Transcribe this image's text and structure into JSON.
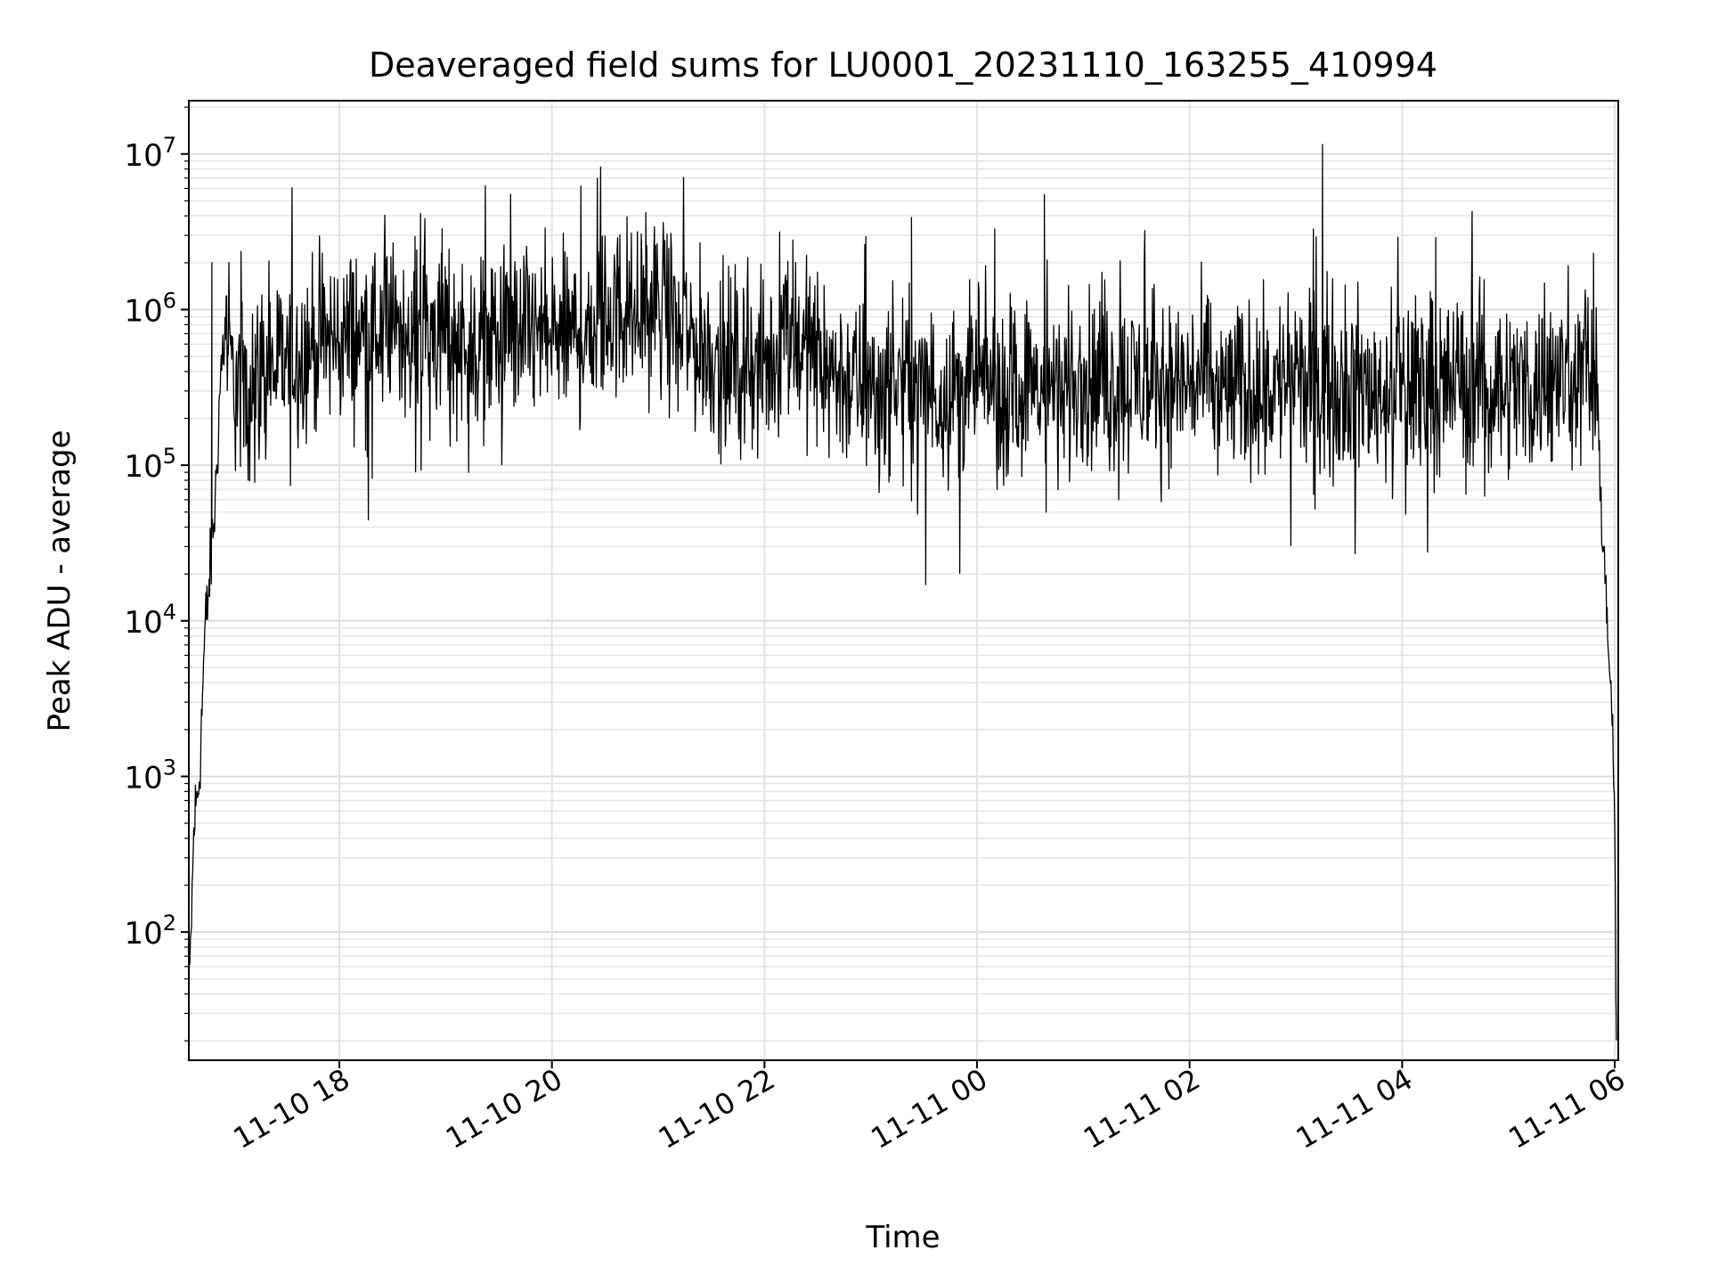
{
  "chart_data": {
    "type": "line",
    "title": "Deaveraged field sums for LU0001_20231110_163255_410994",
    "xlabel": "Time",
    "ylabel": "Peak ADU - average",
    "yscale": "log",
    "grid": true,
    "grid_minor": true,
    "line_color": "#000000",
    "xlim": [
      "2023-11-10 16:35",
      "2023-11-11 06:02"
    ],
    "ylim": [
      15,
      22000000
    ],
    "x_ticks": [
      {
        "value": "2023-11-10 18:00",
        "label": "11-10 18"
      },
      {
        "value": "2023-11-10 20:00",
        "label": "11-10 20"
      },
      {
        "value": "2023-11-10 22:00",
        "label": "11-10 22"
      },
      {
        "value": "2023-11-11 00:00",
        "label": "11-11 00"
      },
      {
        "value": "2023-11-11 02:00",
        "label": "11-11 02"
      },
      {
        "value": "2023-11-11 04:00",
        "label": "11-11 04"
      },
      {
        "value": "2023-11-11 06:00",
        "label": "11-11 06"
      }
    ],
    "y_ticks": [
      {
        "value": 100,
        "base": "10",
        "exp": "2"
      },
      {
        "value": 1000,
        "base": "10",
        "exp": "3"
      },
      {
        "value": 10000,
        "base": "10",
        "exp": "4"
      },
      {
        "value": 100000,
        "base": "10",
        "exp": "5"
      },
      {
        "value": 1000000,
        "base": "10",
        "exp": "6"
      },
      {
        "value": 10000000,
        "base": "10",
        "exp": "7"
      }
    ],
    "series": [
      {
        "x": [
          "2023-11-10 16:35",
          "2023-11-10 16:38",
          "2023-11-10 16:41",
          "2023-11-10 16:44",
          "2023-11-10 16:47",
          "2023-11-10 16:50",
          "2023-11-10 16:53",
          "2023-11-10 16:56",
          "2023-11-10 17:00",
          "2023-11-10 17:05",
          "2023-11-10 17:15",
          "2023-11-10 17:30",
          "2023-11-10 17:45",
          "2023-11-10 18:00",
          "2023-11-10 18:15",
          "2023-11-10 18:30",
          "2023-11-10 18:45",
          "2023-11-10 19:00",
          "2023-11-10 19:15",
          "2023-11-10 19:30",
          "2023-11-10 19:45",
          "2023-11-10 20:00",
          "2023-11-10 20:15",
          "2023-11-10 20:30",
          "2023-11-10 20:45",
          "2023-11-10 21:00",
          "2023-11-10 21:15",
          "2023-11-10 21:30",
          "2023-11-10 21:45",
          "2023-11-10 22:00",
          "2023-11-10 22:15",
          "2023-11-10 22:30",
          "2023-11-10 22:45",
          "2023-11-10 23:00",
          "2023-11-10 23:15",
          "2023-11-10 23:30",
          "2023-11-10 23:45",
          "2023-11-11 00:00",
          "2023-11-11 00:15",
          "2023-11-11 00:30",
          "2023-11-11 00:45",
          "2023-11-11 01:00",
          "2023-11-11 01:15",
          "2023-11-11 01:30",
          "2023-11-11 01:45",
          "2023-11-11 02:00",
          "2023-11-11 02:15",
          "2023-11-11 02:30",
          "2023-11-11 02:45",
          "2023-11-11 03:00",
          "2023-11-11 03:15",
          "2023-11-11 03:30",
          "2023-11-11 03:45",
          "2023-11-11 04:00",
          "2023-11-11 04:15",
          "2023-11-11 04:30",
          "2023-11-11 04:45",
          "2023-11-11 05:00",
          "2023-11-11 05:15",
          "2023-11-11 05:30",
          "2023-11-11 05:45",
          "2023-11-11 05:50",
          "2023-11-11 05:53",
          "2023-11-11 05:56",
          "2023-11-11 05:58",
          "2023-11-11 06:00",
          "2023-11-11 06:01"
        ],
        "y": [
          30,
          500,
          1000,
          8000,
          20000,
          60000,
          400000,
          800000,
          350000,
          300000,
          400000,
          450000,
          600000,
          650000,
          700000,
          750000,
          800000,
          700000,
          600000,
          650000,
          700000,
          650000,
          700000,
          900000,
          1000000,
          1100000,
          700000,
          500000,
          450000,
          400000,
          700000,
          500000,
          350000,
          300000,
          350000,
          300000,
          300000,
          350000,
          300000,
          320000,
          300000,
          350000,
          320000,
          350000,
          330000,
          350000,
          320000,
          300000,
          330000,
          350000,
          380000,
          320000,
          300000,
          330000,
          340000,
          350000,
          360000,
          330000,
          320000,
          350000,
          450000,
          300000,
          40000,
          10000,
          3000,
          500,
          20
        ],
        "spikes": [
          {
            "x": "2023-11-10 16:48",
            "y": 2000000
          },
          {
            "x": "2023-11-10 18:58",
            "y": 3300000
          },
          {
            "x": "2023-11-10 20:53",
            "y": 4200000
          },
          {
            "x": "2023-11-10 22:16",
            "y": 2800000
          },
          {
            "x": "2023-11-10 23:23",
            "y": 3900000
          },
          {
            "x": "2023-11-11 00:10",
            "y": 3300000
          },
          {
            "x": "2023-11-11 00:38",
            "y": 5500000
          },
          {
            "x": "2023-11-11 03:15",
            "y": 11500000
          },
          {
            "x": "2023-11-11 04:19",
            "y": 2900000
          },
          {
            "x": "2023-11-11 05:48",
            "y": 2300000
          }
        ],
        "dips": [
          {
            "x": "2023-11-10 19:13",
            "y": 90000
          },
          {
            "x": "2023-11-11 00:39",
            "y": 50000
          },
          {
            "x": "2023-11-11 01:20",
            "y": 60000
          },
          {
            "x": "2023-11-11 03:10",
            "y": 65000
          },
          {
            "x": "2023-11-11 04:36",
            "y": 65000
          }
        ]
      }
    ]
  }
}
